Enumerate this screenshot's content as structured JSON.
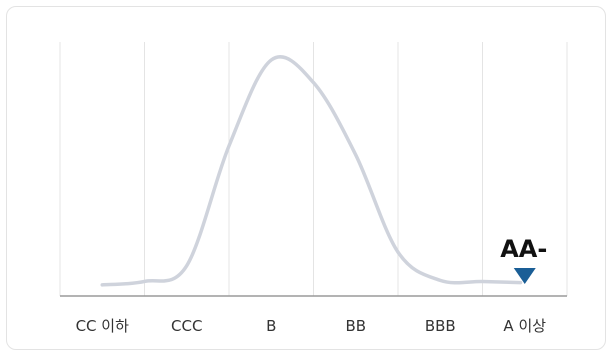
{
  "chart_data": {
    "type": "line",
    "categories": [
      "CC 이하",
      "CCC",
      "B",
      "BB",
      "BBB",
      "A 이상"
    ],
    "series": [
      {
        "x": [
          0.5,
          1.0,
          1.5,
          2.0,
          2.5,
          3.0,
          3.5,
          4.0,
          4.5,
          5.0,
          5.45
        ],
        "y": [
          0.5,
          2.0,
          9.0,
          62.0,
          100.0,
          90.0,
          58.0,
          15.0,
          2.5,
          2.0,
          1.5
        ]
      }
    ],
    "ylim": [
      0,
      110
    ],
    "xlim": [
      0,
      6
    ],
    "grid": true,
    "line_color": "#cfd3dc",
    "marker": {
      "label": "AA-",
      "category_index": 5,
      "color": "#1a5e96"
    }
  }
}
